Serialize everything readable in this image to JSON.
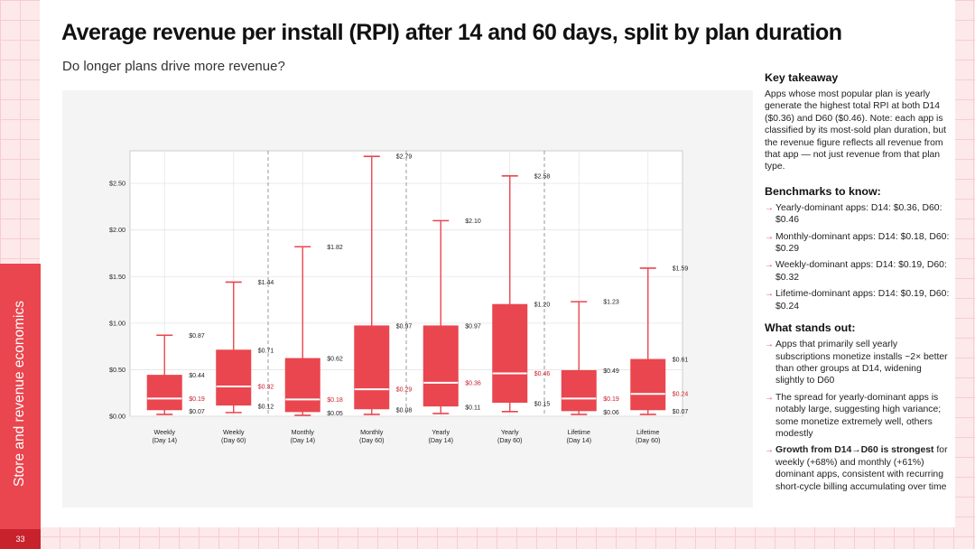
{
  "page": {
    "title": "Average revenue per install (RPI) after 14 and 60 days, split by plan duration",
    "subtitle": "Do longer plans drive more revenue?",
    "section_label": "Store and revenue economics",
    "page_number": "33"
  },
  "sidebar": {
    "key_takeaway_heading": "Key takeaway",
    "key_takeaway_text": "Apps whose most popular plan is yearly generate the highest total RPI at both D14 ($0.36) and D60 ($0.46). Note: each app is classified by its most-sold plan duration, but the revenue figure reflects all revenue from that app — not just revenue from that plan type.",
    "benchmarks_heading": "Benchmarks to know:",
    "benchmarks": [
      "Yearly-dominant apps: D14: $0.36, D60: $0.46",
      "Monthly-dominant apps: D14: $0.18, D60: $0.29",
      "Weekly-dominant apps: D14: $0.19, D60: $0.32",
      "Lifetime-dominant apps: D14: $0.19, D60: $0.24"
    ],
    "stands_out_heading": "What stands out:",
    "stands_out": [
      {
        "lead": "",
        "text": "Apps that primarily sell yearly subscriptions monetize installs ~2× better than other groups at D14, widening slightly to D60"
      },
      {
        "lead": "",
        "text": "The spread for yearly-dominant apps is notably large, suggesting high variance; some monetize extremely well, others modestly"
      },
      {
        "lead": "Growth from D14→D60 is strongest",
        "text": " for weekly (+68%) and monthly (+61%) dominant apps, consistent with recurring short-cycle billing accumulating over time"
      }
    ]
  },
  "chart_data": {
    "type": "box",
    "title": "",
    "xlabel": "",
    "ylabel": "",
    "ylim": [
      0,
      2.85
    ],
    "yticks": [
      0,
      0.5,
      1.0,
      1.5,
      2.0,
      2.5
    ],
    "ytick_labels": [
      "$0.00",
      "$0.50",
      "$1.00",
      "$1.50",
      "$2.00",
      "$2.50"
    ],
    "grid": true,
    "colors": {
      "box": "#e9464f",
      "median": "#ffffff",
      "median_label": "#c8222c",
      "label": "#222222"
    },
    "groups": [
      {
        "line1": "Weekly",
        "line2": "(Day 14)",
        "min": 0.02,
        "q1": 0.07,
        "median": 0.19,
        "q3": 0.44,
        "max": 0.87,
        "labels": {
          "max": "$0.87",
          "q3": "$0.44",
          "median": "$0.19",
          "q1": "$0.07"
        }
      },
      {
        "line1": "Weekly",
        "line2": "(Day 60)",
        "min": 0.04,
        "q1": 0.12,
        "median": 0.32,
        "q3": 0.71,
        "max": 1.44,
        "labels": {
          "max": "$1.44",
          "q3": "$0.71",
          "median": "$0.32",
          "q1": "$0.12"
        }
      },
      {
        "line1": "Monthly",
        "line2": "(Day 14)",
        "min": 0.01,
        "q1": 0.05,
        "median": 0.18,
        "q3": 0.62,
        "max": 1.82,
        "labels": {
          "max": "$1.82",
          "q3": "$0.62",
          "median": "$0.18",
          "q1": "$0.05"
        }
      },
      {
        "line1": "Monthly",
        "line2": "(Day 60)",
        "min": 0.02,
        "q1": 0.08,
        "median": 0.29,
        "q3": 0.97,
        "max": 2.79,
        "labels": {
          "max": "$2.79",
          "q3": "$0.97",
          "median": "$0.29",
          "q1": "$0.08"
        }
      },
      {
        "line1": "Yearly",
        "line2": "(Day 14)",
        "min": 0.03,
        "q1": 0.11,
        "median": 0.36,
        "q3": 0.97,
        "max": 2.1,
        "labels": {
          "max": "$2.10",
          "q3": "$0.97",
          "median": "$0.36",
          "q1": "$0.11"
        }
      },
      {
        "line1": "Yearly",
        "line2": "(Day 60)",
        "min": 0.05,
        "q1": 0.15,
        "median": 0.46,
        "q3": 1.2,
        "max": 2.58,
        "labels": {
          "max": "$2.58",
          "q3": "$1.20",
          "median": "$0.46",
          "q1": "$0.15"
        }
      },
      {
        "line1": "Lifetime",
        "line2": "(Day 14)",
        "min": 0.02,
        "q1": 0.06,
        "median": 0.19,
        "q3": 0.49,
        "max": 1.23,
        "labels": {
          "max": "$1.23",
          "q3": "$0.49",
          "median": "$0.19",
          "q1": "$0.06"
        }
      },
      {
        "line1": "Lifetime",
        "line2": "(Day 60)",
        "min": 0.02,
        "q1": 0.07,
        "median": 0.24,
        "q3": 0.61,
        "max": 1.59,
        "labels": {
          "max": "$1.59",
          "q3": "$0.61",
          "median": "$0.24",
          "q1": "$0.07"
        }
      }
    ],
    "dividers_after": [
      1,
      3,
      5
    ]
  }
}
